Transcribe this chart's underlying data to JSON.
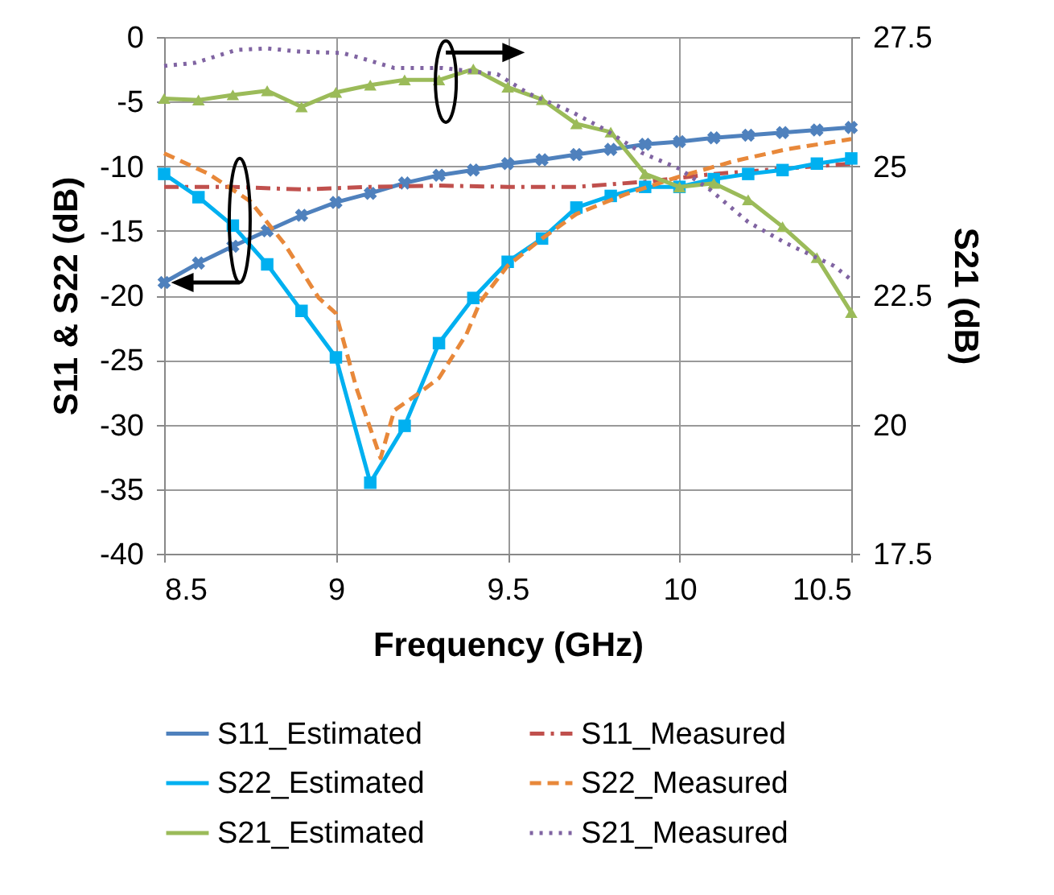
{
  "chart_data": {
    "type": "line",
    "xlabel": "Frequency (GHz)",
    "ylabel": "S11 & S22 (dB)",
    "y2label": "S21 (dB)",
    "x": [
      8.5,
      8.6,
      8.7,
      8.8,
      8.9,
      9.0,
      9.1,
      9.2,
      9.3,
      9.4,
      9.5,
      9.6,
      9.7,
      9.8,
      9.9,
      10.0,
      10.1,
      10.2,
      10.3,
      10.4,
      10.5
    ],
    "series": [
      {
        "name": "S11_Estimated",
        "color": "#4f81bd",
        "marker": "cross",
        "line_style": "solid",
        "values": [
          -19,
          -17.5,
          -16.2,
          -15,
          -13.8,
          -12.8,
          -12.1,
          -11.3,
          -10.7,
          -10.3,
          -9.8,
          -9.5,
          -9.1,
          -8.7,
          -8.3,
          -8.1,
          -7.8,
          -7.6,
          -7.4,
          -7.2,
          -7.0
        ]
      },
      {
        "name": "S11_Measured",
        "color": "#c0504d",
        "marker": "none",
        "line_style": "dashdot",
        "x": [
          8.5,
          8.7,
          8.9,
          9.1,
          9.3,
          9.5,
          9.7,
          9.9,
          10.1,
          10.3,
          10.5
        ],
        "values": [
          -11.6,
          -11.6,
          -11.8,
          -11.6,
          -11.5,
          -11.6,
          -11.6,
          -11.2,
          -10.6,
          -10.2,
          -9.8
        ]
      },
      {
        "name": "S22_Estimated",
        "color": "#00b0f0",
        "marker": "square",
        "line_style": "solid",
        "values": [
          -10.6,
          -12.4,
          -14.6,
          -17.6,
          -21.2,
          -24.8,
          -34.5,
          -30.1,
          -23.7,
          -20.2,
          -17.4,
          -15.6,
          -13.2,
          -12.3,
          -11.6,
          -11.6,
          -11.0,
          -10.6,
          -10.3,
          -9.8,
          -9.4
        ]
      },
      {
        "name": "S22_Measured",
        "color": "#e8883a",
        "marker": "none",
        "line_style": "dashed",
        "x": [
          8.5,
          8.63,
          8.75,
          8.85,
          8.95,
          9.0,
          9.06,
          9.13,
          9.17,
          9.24,
          9.3,
          9.38,
          9.42,
          9.5,
          9.6,
          9.7,
          9.84,
          10.0,
          10.16,
          10.31,
          10.5
        ],
        "values": [
          -9.0,
          -10.6,
          -12.7,
          -16,
          -20.2,
          -21.4,
          -27.2,
          -32.6,
          -28.9,
          -27.6,
          -26.4,
          -23,
          -20.5,
          -17.7,
          -15.6,
          -13.7,
          -12.2,
          -10.8,
          -9.6,
          -8.7,
          -7.9
        ]
      },
      {
        "name": "S21_Estimated",
        "color": "#9bbb59",
        "marker": "triangle",
        "line_style": "solid",
        "axis": "y2",
        "values": [
          26.31,
          26.28,
          26.38,
          26.46,
          26.15,
          26.43,
          26.57,
          26.67,
          26.67,
          26.88,
          26.53,
          26.29,
          25.82,
          25.66,
          24.85,
          24.6,
          24.67,
          24.35,
          23.83,
          23.23,
          22.17
        ]
      },
      {
        "name": "S21_Measured",
        "color": "#8064a2",
        "marker": "none",
        "line_style": "dotted",
        "axis": "y2",
        "x": [
          8.5,
          8.59,
          8.71,
          8.8,
          8.89,
          9.02,
          9.09,
          9.17,
          9.31,
          9.38,
          9.47,
          9.56,
          9.69,
          9.78,
          9.89,
          10.0,
          10.09,
          10.2,
          10.31,
          10.45,
          10.5
        ],
        "values": [
          26.94,
          27.0,
          27.25,
          27.28,
          27.22,
          27.19,
          27.06,
          26.9,
          26.9,
          26.85,
          26.78,
          26.41,
          26.04,
          25.72,
          25.26,
          24.95,
          24.54,
          23.92,
          23.51,
          23.07,
          22.8
        ]
      }
    ],
    "xlim": [
      8.5,
      10.5
    ],
    "xticks": [
      8.5,
      9,
      9.5,
      10,
      10.5
    ],
    "ylim": [
      -40,
      0
    ],
    "yticks": [
      -40,
      -35,
      -30,
      -25,
      -20,
      -15,
      -10,
      -5,
      0
    ],
    "y2lim": [
      17.5,
      27.5
    ],
    "y2ticks": [
      17.5,
      20,
      22.5,
      25,
      27.5
    ],
    "grid": true,
    "legend": "bottom"
  }
}
